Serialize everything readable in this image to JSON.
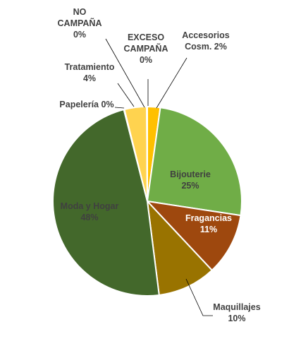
{
  "chart_data": {
    "type": "pie",
    "title": "",
    "slices": [
      {
        "name": "Accesorios Cosm.",
        "label_lines": [
          "Accesorios",
          "Cosm. 2%"
        ],
        "value": 2.2,
        "color": "#FFC000"
      },
      {
        "name": "Bijouterie",
        "label_lines": [
          "Bijouterie",
          "25%"
        ],
        "value": 25.2,
        "color": "#70AD47"
      },
      {
        "name": "Fragancias",
        "label_lines": [
          "Fragancias",
          "11%"
        ],
        "value": 10.6,
        "color": "#9E480E"
      },
      {
        "name": "Maquillajes",
        "label_lines": [
          "Maquillajes",
          "10%"
        ],
        "value": 10.0,
        "color": "#997300"
      },
      {
        "name": "Moda y Hogar",
        "label_lines": [
          "Moda y Hogar",
          "48%"
        ],
        "value": 48.0,
        "color": "#43682B"
      },
      {
        "name": "Papelería",
        "label_lines": [
          "Papelería 0%"
        ],
        "value": 0.1,
        "color": "#FFD966"
      },
      {
        "name": "Tratamiento",
        "label_lines": [
          "Tratamiento",
          "4%"
        ],
        "value": 3.8,
        "color": "#FFD34F"
      },
      {
        "name": "NO CAMPAÑA",
        "label_lines": [
          "NO",
          "CAMPAÑA",
          "0%"
        ],
        "value": 0.05,
        "color": "#FFE699"
      },
      {
        "name": "EXCESO CAMPAÑA",
        "label_lines": [
          "EXCESO",
          "CAMPAÑA",
          "0%"
        ],
        "value": 0.05,
        "color": "#F4B183"
      }
    ]
  }
}
